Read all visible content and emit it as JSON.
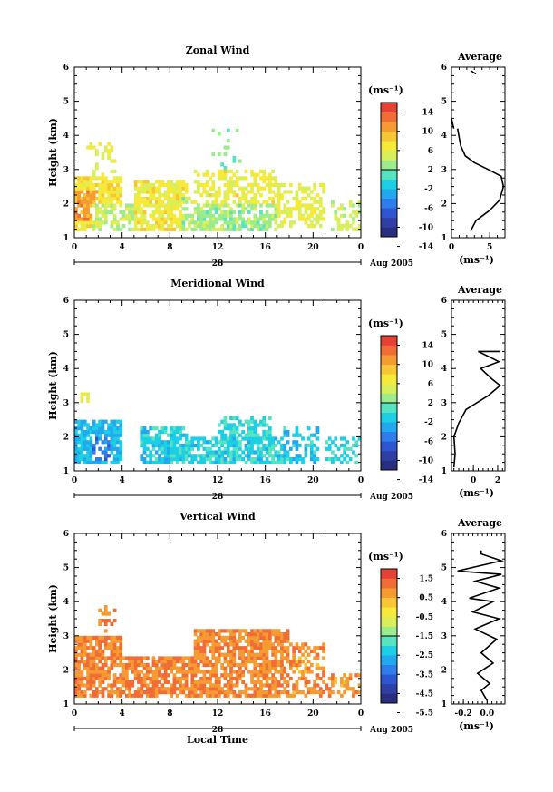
{
  "chart_data": [
    {
      "type": "heatmap",
      "title": "Zonal Wind",
      "ylabel": "Height (km)",
      "xlabel": "",
      "x_ticks": [
        "0",
        "4",
        "8",
        "12",
        "16",
        "20",
        "0"
      ],
      "y_ticks": [
        "1",
        "2",
        "3",
        "4",
        "5",
        "6"
      ],
      "xlim": [
        0,
        24
      ],
      "ylim": [
        1,
        6
      ],
      "date_label": "28",
      "month_label": "Aug 2005",
      "colorbar": {
        "unit": "(ms⁻¹)",
        "ticks": [
          "14",
          "10",
          "6",
          "2",
          "-2",
          "-6",
          "-10",
          "-14"
        ],
        "min": -16,
        "max": 16
      },
      "regions": [
        {
          "t0": 0.0,
          "t1": 4.0,
          "h0": 1.2,
          "h1": 2.8,
          "v": 6.0,
          "density": 0.85
        },
        {
          "t0": 0.0,
          "t1": 2.0,
          "h0": 1.5,
          "h1": 2.4,
          "v": 10.0,
          "density": 0.8
        },
        {
          "t0": 1.5,
          "t1": 5.0,
          "h0": 1.2,
          "h1": 2.0,
          "v": 3.0,
          "density": 0.6
        },
        {
          "t0": 1.0,
          "t1": 3.5,
          "h0": 2.8,
          "h1": 3.8,
          "v": 4.0,
          "density": 0.3
        },
        {
          "t0": 5.0,
          "t1": 9.5,
          "h0": 1.2,
          "h1": 2.7,
          "v": 5.5,
          "density": 0.75
        },
        {
          "t0": 9.0,
          "t1": 17.0,
          "h0": 1.2,
          "h1": 2.2,
          "v": 1.5,
          "density": 0.7
        },
        {
          "t0": 10.0,
          "t1": 17.0,
          "h0": 2.0,
          "h1": 3.0,
          "v": 5.0,
          "density": 0.55
        },
        {
          "t0": 11.5,
          "t1": 14.0,
          "h0": 3.0,
          "h1": 4.3,
          "v": 0.5,
          "density": 0.2
        },
        {
          "t0": 17.0,
          "t1": 21.0,
          "h0": 1.3,
          "h1": 2.6,
          "v": 4.5,
          "density": 0.5
        },
        {
          "t0": 21.5,
          "t1": 24.0,
          "h0": 1.2,
          "h1": 2.1,
          "v": 2.5,
          "density": 0.45
        }
      ],
      "average": {
        "title": "Average",
        "xlabel": "(ms⁻¹)",
        "x_ticks": [
          "0",
          "5"
        ],
        "xlim": [
          0,
          7
        ],
        "segments": [
          [
            [
              2.5,
              1.2
            ],
            [
              3.2,
              1.5
            ],
            [
              5.0,
              1.8
            ],
            [
              6.3,
              2.1
            ],
            [
              6.8,
              2.5
            ],
            [
              6.5,
              2.8
            ],
            [
              4.8,
              3.0
            ],
            [
              3.0,
              3.2
            ],
            [
              1.8,
              3.4
            ],
            [
              1.2,
              3.7
            ],
            [
              0.8,
              4.2
            ]
          ],
          [
            [
              0.3,
              4.2
            ],
            [
              0.0,
              4.5
            ]
          ],
          [
            [
              2.5,
              5.9
            ],
            [
              3.2,
              5.8
            ]
          ]
        ]
      }
    },
    {
      "type": "heatmap",
      "title": "Meridional Wind",
      "ylabel": "Height (km)",
      "xlabel": "",
      "x_ticks": [
        "0",
        "4",
        "8",
        "12",
        "16",
        "20",
        "0"
      ],
      "y_ticks": [
        "1",
        "2",
        "3",
        "4",
        "5",
        "6"
      ],
      "xlim": [
        0,
        24
      ],
      "ylim": [
        1,
        6
      ],
      "date_label": "28",
      "month_label": "Aug 2005",
      "colorbar": {
        "unit": "(ms⁻¹)",
        "ticks": [
          "14",
          "10",
          "6",
          "2",
          "-2",
          "-6",
          "-10",
          "-14"
        ],
        "min": -16,
        "max": 16
      },
      "regions": [
        {
          "t0": 0.0,
          "t1": 4.0,
          "h0": 1.2,
          "h1": 2.5,
          "v": -4.5,
          "density": 0.85
        },
        {
          "t0": 1.5,
          "t1": 3.0,
          "h0": 1.3,
          "h1": 2.0,
          "v": -8.0,
          "density": 0.5
        },
        {
          "t0": 5.5,
          "t1": 9.5,
          "h0": 1.2,
          "h1": 2.3,
          "v": -3.5,
          "density": 0.75
        },
        {
          "t0": 8.0,
          "t1": 17.5,
          "h0": 1.2,
          "h1": 2.0,
          "v": -3.0,
          "density": 0.8
        },
        {
          "t0": 12.0,
          "t1": 16.5,
          "h0": 2.0,
          "h1": 2.6,
          "v": -2.5,
          "density": 0.5
        },
        {
          "t0": 17.5,
          "t1": 20.5,
          "h0": 1.2,
          "h1": 2.3,
          "v": -4.0,
          "density": 0.45
        },
        {
          "t0": 21.0,
          "t1": 24.0,
          "h0": 1.2,
          "h1": 2.0,
          "v": -2.5,
          "density": 0.35
        },
        {
          "t0": 0.3,
          "t1": 1.2,
          "h0": 3.0,
          "h1": 3.3,
          "v": 4.0,
          "density": 0.6
        }
      ],
      "average": {
        "title": "Average",
        "xlabel": "(ms⁻¹)",
        "x_ticks": [
          "0",
          "2"
        ],
        "xlim": [
          -1.8,
          2.6
        ],
        "segments": [
          [
            [
              -1.6,
              1.1
            ],
            [
              -1.5,
              1.5
            ],
            [
              -1.6,
              2.0
            ],
            [
              -1.2,
              2.4
            ],
            [
              -0.6,
              2.8
            ],
            [
              0.3,
              3.0
            ],
            [
              1.2,
              3.2
            ],
            [
              2.2,
              3.5
            ],
            [
              1.5,
              3.7
            ],
            [
              0.6,
              4.0
            ],
            [
              2.1,
              4.2
            ],
            [
              0.4,
              4.5
            ],
            [
              2.2,
              4.5
            ]
          ]
        ]
      }
    },
    {
      "type": "heatmap",
      "title": "Vertical Wind",
      "ylabel": "Height (km)",
      "xlabel": "Local Time",
      "x_ticks": [
        "0",
        "4",
        "8",
        "12",
        "16",
        "20",
        "0"
      ],
      "y_ticks": [
        "1",
        "2",
        "3",
        "4",
        "5",
        "6"
      ],
      "xlim": [
        0,
        24
      ],
      "ylim": [
        1,
        6
      ],
      "date_label": "28",
      "month_label": "Aug 2005",
      "colorbar": {
        "unit": "(ms⁻¹)",
        "ticks": [
          "1.5",
          "0.5",
          "-0.5",
          "-1.5",
          "-2.5",
          "-3.5",
          "-4.5",
          "-5.5"
        ],
        "min": -6.0,
        "max": 2.0
      },
      "regions": [
        {
          "t0": 0.0,
          "t1": 4.0,
          "h0": 1.2,
          "h1": 3.0,
          "v": 0.8,
          "density": 0.8
        },
        {
          "t0": 2.0,
          "t1": 3.5,
          "h0": 3.0,
          "h1": 3.9,
          "v": 0.8,
          "density": 0.25
        },
        {
          "t0": 4.0,
          "t1": 10.0,
          "h0": 1.2,
          "h1": 2.4,
          "v": 0.9,
          "density": 0.8
        },
        {
          "t0": 10.0,
          "t1": 18.0,
          "h0": 1.2,
          "h1": 3.2,
          "v": 0.8,
          "density": 0.75
        },
        {
          "t0": 18.0,
          "t1": 21.0,
          "h0": 1.2,
          "h1": 2.8,
          "v": 0.7,
          "density": 0.55
        },
        {
          "t0": 21.0,
          "t1": 24.0,
          "h0": 1.2,
          "h1": 1.9,
          "v": 0.6,
          "density": 0.35
        }
      ],
      "average": {
        "title": "Average",
        "xlabel": "(ms⁻¹)",
        "x_ticks": [
          "-0.2",
          "0.0"
        ],
        "xlim": [
          -0.3,
          0.15
        ],
        "segments": [
          [
            [
              0.0,
              1.1
            ],
            [
              -0.05,
              1.4
            ],
            [
              0.02,
              1.6
            ],
            [
              -0.08,
              1.9
            ],
            [
              0.05,
              2.2
            ],
            [
              -0.05,
              2.5
            ],
            [
              0.08,
              2.9
            ],
            [
              -0.1,
              3.2
            ],
            [
              0.1,
              3.5
            ],
            [
              -0.12,
              3.7
            ],
            [
              0.05,
              4.0
            ],
            [
              -0.15,
              4.1
            ],
            [
              0.1,
              4.4
            ],
            [
              -0.1,
              4.6
            ],
            [
              0.12,
              4.8
            ],
            [
              -0.25,
              4.9
            ],
            [
              0.12,
              5.2
            ],
            [
              -0.05,
              5.4
            ],
            [
              -0.05,
              5.5
            ]
          ]
        ]
      }
    }
  ]
}
